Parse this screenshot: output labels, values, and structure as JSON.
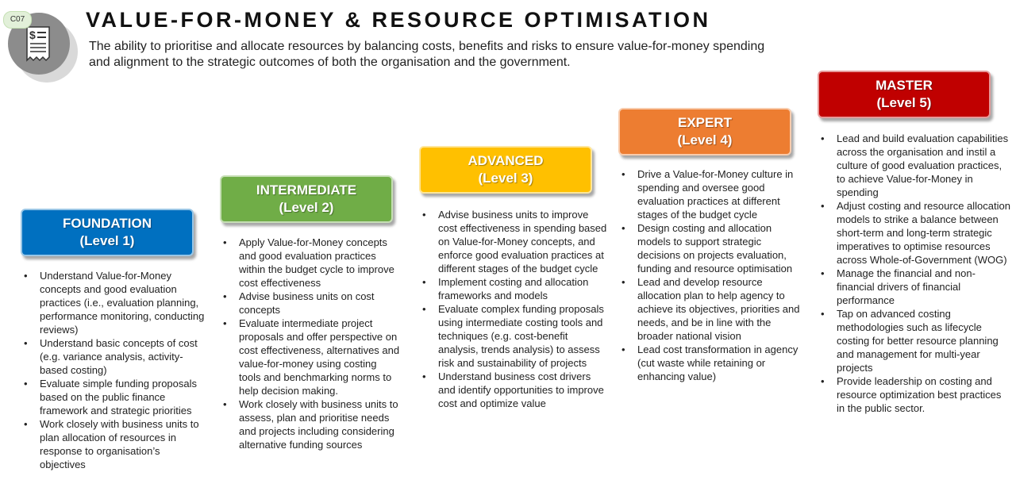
{
  "header": {
    "badge_code": "C07",
    "title": "VALUE-FOR-MONEY & RESOURCE OPTIMISATION",
    "subtitle": "The ability to prioritise and allocate resources by balancing costs, benefits and risks to ensure value-for-money spending and alignment to the strategic outcomes of both the organisation and the government.",
    "icon": "receipt-dollar-icon"
  },
  "levels": [
    {
      "name": "FOUNDATION",
      "level": "(Level 1)",
      "color": "#0070c0",
      "items": [
        "Understand Value-for-Money concepts and good evaluation practices (i.e., evaluation planning, performance monitoring, conducting reviews)",
        "Understand basic concepts of cost (e.g. variance analysis, activity-based costing)",
        "Evaluate simple funding proposals based on the public finance framework and strategic priorities",
        "Work closely with business units to plan allocation of resources in response to organisation’s objectives"
      ]
    },
    {
      "name": "INTERMEDIATE",
      "level": "(Level 2)",
      "color": "#70ad47",
      "items": [
        "Apply Value-for-Money concepts and good evaluation practices within the budget cycle to improve cost effectiveness",
        "Advise business units on cost concepts",
        "Evaluate intermediate project proposals and offer perspective on cost effectiveness, alternatives and value-for-money using costing tools and benchmarking norms to help decision making.",
        "Work closely with business units to assess, plan and prioritise needs and projects including considering alternative funding sources"
      ]
    },
    {
      "name": "ADVANCED",
      "level": "(Level 3)",
      "color": "#ffc000",
      "items": [
        "Advise business units to improve cost effectiveness in spending based on Value-for-Money concepts, and enforce good evaluation practices at different stages of the budget cycle",
        "Implement costing and allocation frameworks and models",
        "Evaluate complex funding proposals using intermediate costing tools and techniques (e.g. cost-benefit analysis, trends analysis) to assess risk and sustainability of projects",
        "Understand business cost drivers and identify opportunities to improve cost and optimize value"
      ]
    },
    {
      "name": "EXPERT",
      "level": "(Level 4)",
      "color": "#ed7d31",
      "items": [
        "Drive a Value-for-Money culture in spending and oversee good evaluation practices at different stages of the budget cycle",
        "Design costing and allocation models to support strategic decisions on projects evaluation, funding and resource optimisation",
        "Lead and develop resource allocation plan to help agency to achieve its objectives, priorities and needs, and be in line with the broader national vision",
        "Lead cost transformation in agency (cut waste while retaining or enhancing value)"
      ]
    },
    {
      "name": "MASTER",
      "level": "(Level 5)",
      "color": "#c00000",
      "items": [
        "Lead and build evaluation capabilities across the organisation and instil a culture of good evaluation practices, to achieve Value-for-Money in spending",
        "Adjust costing and resource allocation models to strike a balance between short-term and long-term strategic imperatives to optimise resources across Whole-of-Government (WOG)",
        "Manage the financial and non-financial drivers of financial performance",
        "Tap on advanced costing methodologies such as lifecycle costing for better resource planning and management for multi-year projects",
        "Provide leadership on costing and resource optimization best practices in the public sector."
      ]
    }
  ]
}
